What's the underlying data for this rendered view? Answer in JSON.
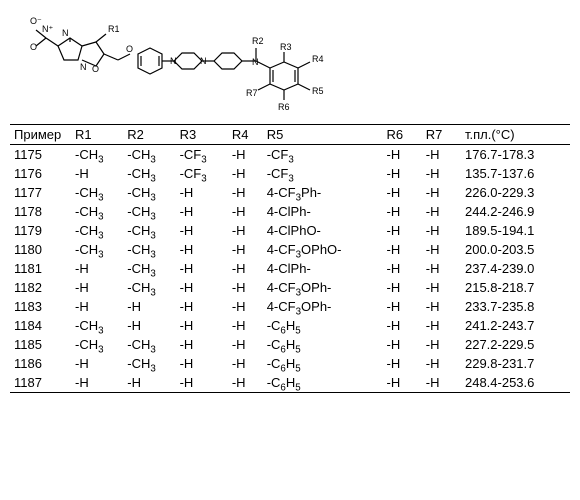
{
  "structure": {
    "labels": [
      "R1",
      "R2",
      "R3",
      "R4",
      "R5",
      "R6",
      "R7"
    ],
    "atoms": [
      "O",
      "O",
      "O",
      "O",
      "N",
      "N",
      "N",
      "N",
      "N",
      "N"
    ],
    "nitro_plus": "+",
    "nitro_minus": "−"
  },
  "table": {
    "columns": [
      "Пример",
      "R1",
      "R2",
      "R3",
      "R4",
      "R5",
      "R6",
      "R7",
      "т.пл.(°C)"
    ],
    "rows": [
      {
        "ex": "1175",
        "r1": "-CH₃",
        "r2": "-CH₃",
        "r3": "-CF₃",
        "r4": "-H",
        "r5": "-CF₃",
        "r6": "-H",
        "r7": "-H",
        "mp": "176.7-178.3"
      },
      {
        "ex": "1176",
        "r1": "-H",
        "r2": "-CH₃",
        "r3": "-CF₃",
        "r4": "-H",
        "r5": "-CF₃",
        "r6": "-H",
        "r7": "-H",
        "mp": "135.7-137.6"
      },
      {
        "ex": "1177",
        "r1": "-CH₃",
        "r2": "-CH₃",
        "r3": "-H",
        "r4": "-H",
        "r5": "4-CF₃Ph-",
        "r6": "-H",
        "r7": "-H",
        "mp": "226.0-229.3"
      },
      {
        "ex": "1178",
        "r1": "-CH₃",
        "r2": "-CH₃",
        "r3": "-H",
        "r4": "-H",
        "r5": "4-ClPh-",
        "r6": "-H",
        "r7": "-H",
        "mp": "244.2-246.9"
      },
      {
        "ex": "1179",
        "r1": "-CH₃",
        "r2": "-CH₃",
        "r3": "-H",
        "r4": "-H",
        "r5": "4-ClPhO-",
        "r6": "-H",
        "r7": "-H",
        "mp": "189.5-194.1"
      },
      {
        "ex": "1180",
        "r1": "-CH₃",
        "r2": "-CH₃",
        "r3": "-H",
        "r4": "-H",
        "r5": "4-CF₃OPhO-",
        "r6": "-H",
        "r7": "-H",
        "mp": "200.0-203.5"
      },
      {
        "ex": "1181",
        "r1": "-H",
        "r2": "-CH₃",
        "r3": "-H",
        "r4": "-H",
        "r5": "4-ClPh-",
        "r6": "-H",
        "r7": "-H",
        "mp": "237.4-239.0"
      },
      {
        "ex": "1182",
        "r1": "-H",
        "r2": "-CH₃",
        "r3": "-H",
        "r4": "-H",
        "r5": "4-CF₃OPh-",
        "r6": "-H",
        "r7": "-H",
        "mp": "215.8-218.7"
      },
      {
        "ex": "1183",
        "r1": "-H",
        "r2": "-H",
        "r3": "-H",
        "r4": "-H",
        "r5": "4-CF₃OPh-",
        "r6": "-H",
        "r7": "-H",
        "mp": "233.7-235.8"
      },
      {
        "ex": "1184",
        "r1": "-CH₃",
        "r2": "-H",
        "r3": "-H",
        "r4": "-H",
        "r5": "-C₆H₅",
        "r6": "-H",
        "r7": "-H",
        "mp": "241.2-243.7"
      },
      {
        "ex": "1185",
        "r1": "-CH₃",
        "r2": "-CH₃",
        "r3": "-H",
        "r4": "-H",
        "r5": "-C₆H₅",
        "r6": "-H",
        "r7": "-H",
        "mp": "227.2-229.5"
      },
      {
        "ex": "1186",
        "r1": "-H",
        "r2": "-CH₃",
        "r3": "-H",
        "r4": "-H",
        "r5": "-C₆H₅",
        "r6": "-H",
        "r7": "-H",
        "mp": "229.8-231.7"
      },
      {
        "ex": "1187",
        "r1": "-H",
        "r2": "-H",
        "r3": "-H",
        "r4": "-H",
        "r5": "-C₆H₅",
        "r6": "-H",
        "r7": "-H",
        "mp": "248.4-253.6"
      }
    ]
  }
}
